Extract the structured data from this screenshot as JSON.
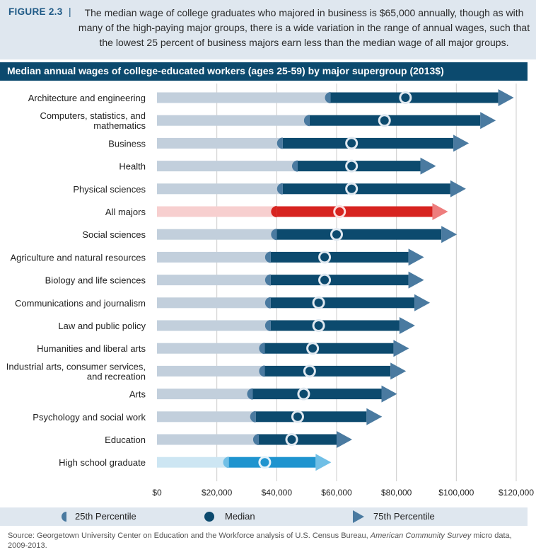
{
  "figure": {
    "label": "FIGURE 2.3",
    "separator": "|",
    "caption": "The median wage of college graduates who majored in business is $65,000 annually, though as with many of the high-paying major groups, there is a wide variation in the range of annual wages, such that the lowest 25 percent of business majors earn less than the median wage of all major groups."
  },
  "legend": {
    "p25_label": "25th Percentile",
    "median_label": "Median",
    "p75_label": "75th Percentile"
  },
  "source": {
    "prefix": "Source: Georgetown University Center on Education and the Workforce analysis of U.S. Census Bureau, ",
    "italic": "American Community Survey",
    "suffix": " micro data, 2009-2013."
  },
  "colors": {
    "bar_base": "#c2cfdc",
    "bar_range": "#0c4a6e",
    "p75_arrow": "#4a7aa0",
    "p25_cap": "#4a7aa0",
    "highlight_base": "#f7cfcf",
    "highlight_range": "#d7231f",
    "highlight_p75": "#ee7d7d",
    "hs_base": "#cde6f3",
    "hs_range": "#1f94cf",
    "hs_p75": "#70bfe6",
    "gridline": "#cccccc"
  },
  "chart_data": {
    "type": "range-bar",
    "title": "Median annual wages of college-educated workers (ages 25-59) by major supergroup (2013$)",
    "xlim": [
      0,
      120000
    ],
    "x_ticks": [
      0,
      20000,
      40000,
      60000,
      80000,
      100000,
      120000
    ],
    "x_tick_labels": [
      "$0",
      "$20,000",
      "$40,000",
      "$60,000",
      "$80,000",
      "$100,000",
      "$120,000"
    ],
    "categories": [
      {
        "label": [
          "Architecture and engineering"
        ],
        "p25": 58000,
        "median": 83000,
        "p75": 114000
      },
      {
        "label": [
          "Computers, statistics, and",
          "mathematics"
        ],
        "p25": 51000,
        "median": 76000,
        "p75": 108000
      },
      {
        "label": [
          "Business"
        ],
        "p25": 42000,
        "median": 65000,
        "p75": 99000
      },
      {
        "label": [
          "Health"
        ],
        "p25": 47000,
        "median": 65000,
        "p75": 88000
      },
      {
        "label": [
          "Physical sciences"
        ],
        "p25": 42000,
        "median": 65000,
        "p75": 98000
      },
      {
        "label": [
          "All majors"
        ],
        "p25": 40000,
        "median": 61000,
        "p75": 92000,
        "style": "highlight"
      },
      {
        "label": [
          "Social sciences"
        ],
        "p25": 40000,
        "median": 60000,
        "p75": 95000
      },
      {
        "label": [
          "Agriculture and natural resources"
        ],
        "p25": 38000,
        "median": 56000,
        "p75": 84000
      },
      {
        "label": [
          "Biology and life sciences"
        ],
        "p25": 38000,
        "median": 56000,
        "p75": 84000
      },
      {
        "label": [
          "Communications and journalism"
        ],
        "p25": 38000,
        "median": 54000,
        "p75": 86000
      },
      {
        "label": [
          "Law and public policy"
        ],
        "p25": 38000,
        "median": 54000,
        "p75": 81000
      },
      {
        "label": [
          "Humanities and liberal arts"
        ],
        "p25": 36000,
        "median": 52000,
        "p75": 79000
      },
      {
        "label": [
          "Industrial arts, consumer services,",
          "and recreation"
        ],
        "p25": 36000,
        "median": 51000,
        "p75": 78000
      },
      {
        "label": [
          "Arts"
        ],
        "p25": 32000,
        "median": 49000,
        "p75": 75000
      },
      {
        "label": [
          "Psychology and social work"
        ],
        "p25": 33000,
        "median": 47000,
        "p75": 70000
      },
      {
        "label": [
          "Education"
        ],
        "p25": 34000,
        "median": 45000,
        "p75": 60000
      },
      {
        "label": [
          "High school graduate"
        ],
        "p25": 24000,
        "median": 36000,
        "p75": 53000,
        "style": "hs"
      }
    ]
  }
}
